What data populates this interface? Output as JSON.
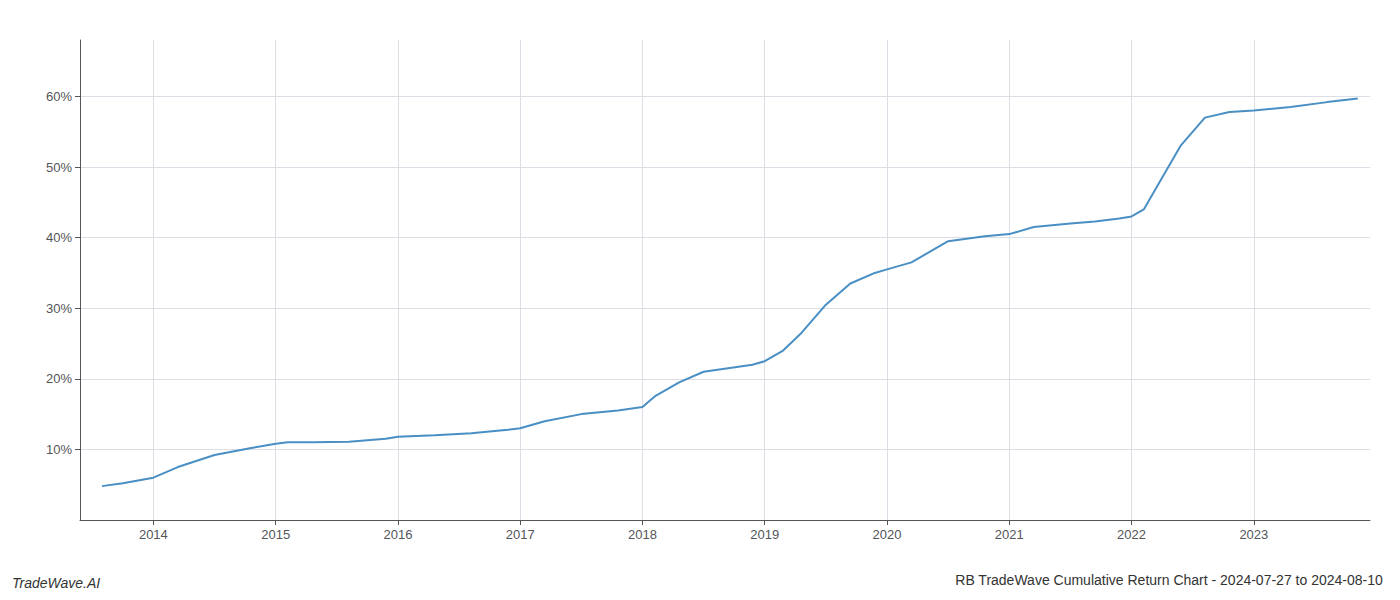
{
  "chart_data": {
    "type": "line",
    "title": "RB TradeWave Cumulative Return Chart - 2024-07-27 to 2024-08-10",
    "annotations": [
      "TradeWave.AI"
    ],
    "color": "#4a8fc4",
    "grid": true,
    "x": [
      2013.58,
      2013.75,
      2014.0,
      2014.2,
      2014.5,
      2014.8,
      2015.0,
      2015.1,
      2015.3,
      2015.6,
      2015.9,
      2016.0,
      2016.3,
      2016.6,
      2016.9,
      2017.0,
      2017.2,
      2017.5,
      2017.8,
      2018.0,
      2018.1,
      2018.3,
      2018.5,
      2018.7,
      2018.9,
      2019.0,
      2019.15,
      2019.3,
      2019.5,
      2019.7,
      2019.9,
      2020.0,
      2020.2,
      2020.5,
      2020.8,
      2021.0,
      2021.2,
      2021.5,
      2021.7,
      2021.9,
      2022.0,
      2022.1,
      2022.2,
      2022.4,
      2022.6,
      2022.8,
      2023.0,
      2023.3,
      2023.6,
      2023.85
    ],
    "values": [
      4.8,
      5.2,
      6.0,
      7.5,
      9.2,
      10.2,
      10.8,
      11.0,
      11.0,
      11.1,
      11.5,
      11.8,
      12.0,
      12.3,
      12.8,
      13.0,
      14.0,
      15.0,
      15.5,
      16.0,
      17.5,
      19.5,
      21.0,
      21.5,
      22.0,
      22.5,
      24.0,
      26.5,
      30.5,
      33.5,
      35.0,
      35.5,
      36.5,
      39.5,
      40.2,
      40.5,
      41.5,
      42.0,
      42.3,
      42.7,
      43.0,
      44.0,
      47.0,
      53.0,
      57.0,
      57.8,
      58.0,
      58.5,
      59.2,
      59.7
    ],
    "xlim": [
      2013.4,
      2023.95
    ],
    "xticks": [
      2014,
      2015,
      2016,
      2017,
      2018,
      2019,
      2020,
      2021,
      2022,
      2023
    ],
    "ylim": [
      0,
      68
    ],
    "yticks": [
      {
        "value": 10,
        "label": "10%"
      },
      {
        "value": 20,
        "label": "20%"
      },
      {
        "value": 30,
        "label": "30%"
      },
      {
        "value": 40,
        "label": "40%"
      },
      {
        "value": 50,
        "label": "50%"
      },
      {
        "value": 60,
        "label": "60%"
      }
    ]
  }
}
